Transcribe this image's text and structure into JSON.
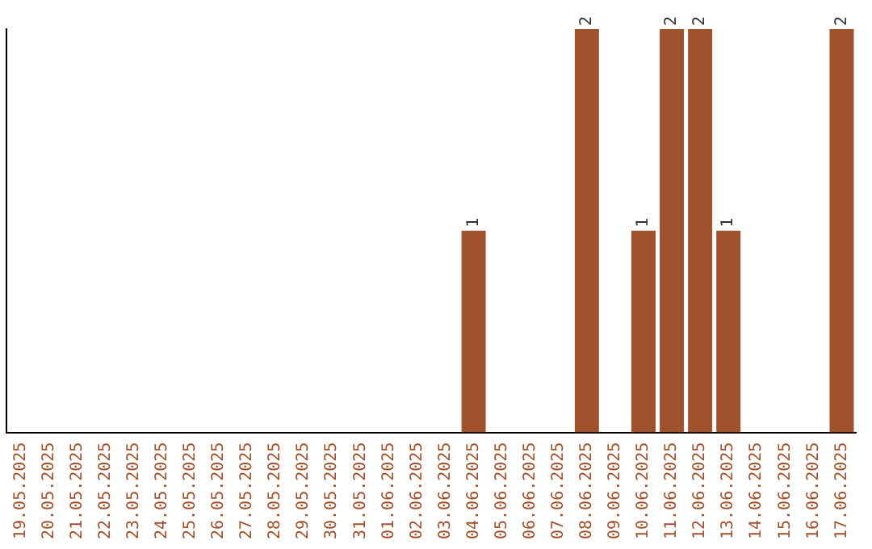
{
  "chart_data": {
    "type": "bar",
    "categories": [
      "19.05.2025",
      "20.05.2025",
      "21.05.2025",
      "22.05.2025",
      "23.05.2025",
      "24.05.2025",
      "25.05.2025",
      "26.05.2025",
      "27.05.2025",
      "28.05.2025",
      "29.05.2025",
      "30.05.2025",
      "31.05.2025",
      "01.06.2025",
      "02.06.2025",
      "03.06.2025",
      "04.06.2025",
      "05.06.2025",
      "06.06.2025",
      "07.06.2025",
      "08.06.2025",
      "09.06.2025",
      "10.06.2025",
      "11.06.2025",
      "12.06.2025",
      "13.06.2025",
      "14.06.2025",
      "15.06.2025",
      "16.06.2025",
      "17.06.2025"
    ],
    "values": [
      null,
      null,
      null,
      null,
      null,
      null,
      null,
      null,
      null,
      null,
      null,
      null,
      null,
      null,
      null,
      null,
      1,
      null,
      null,
      null,
      2,
      null,
      1,
      2,
      2,
      1,
      null,
      null,
      null,
      2
    ],
    "ylim": [
      0,
      2
    ],
    "value_labels": [
      null,
      null,
      null,
      null,
      null,
      null,
      null,
      null,
      null,
      null,
      null,
      null,
      null,
      null,
      null,
      null,
      "1",
      null,
      null,
      null,
      "2",
      null,
      "1",
      "2",
      "2",
      "1",
      null,
      null,
      null,
      "2"
    ],
    "color": "#a0522d",
    "tick_labels": "x",
    "grid": false,
    "legend": false
  }
}
